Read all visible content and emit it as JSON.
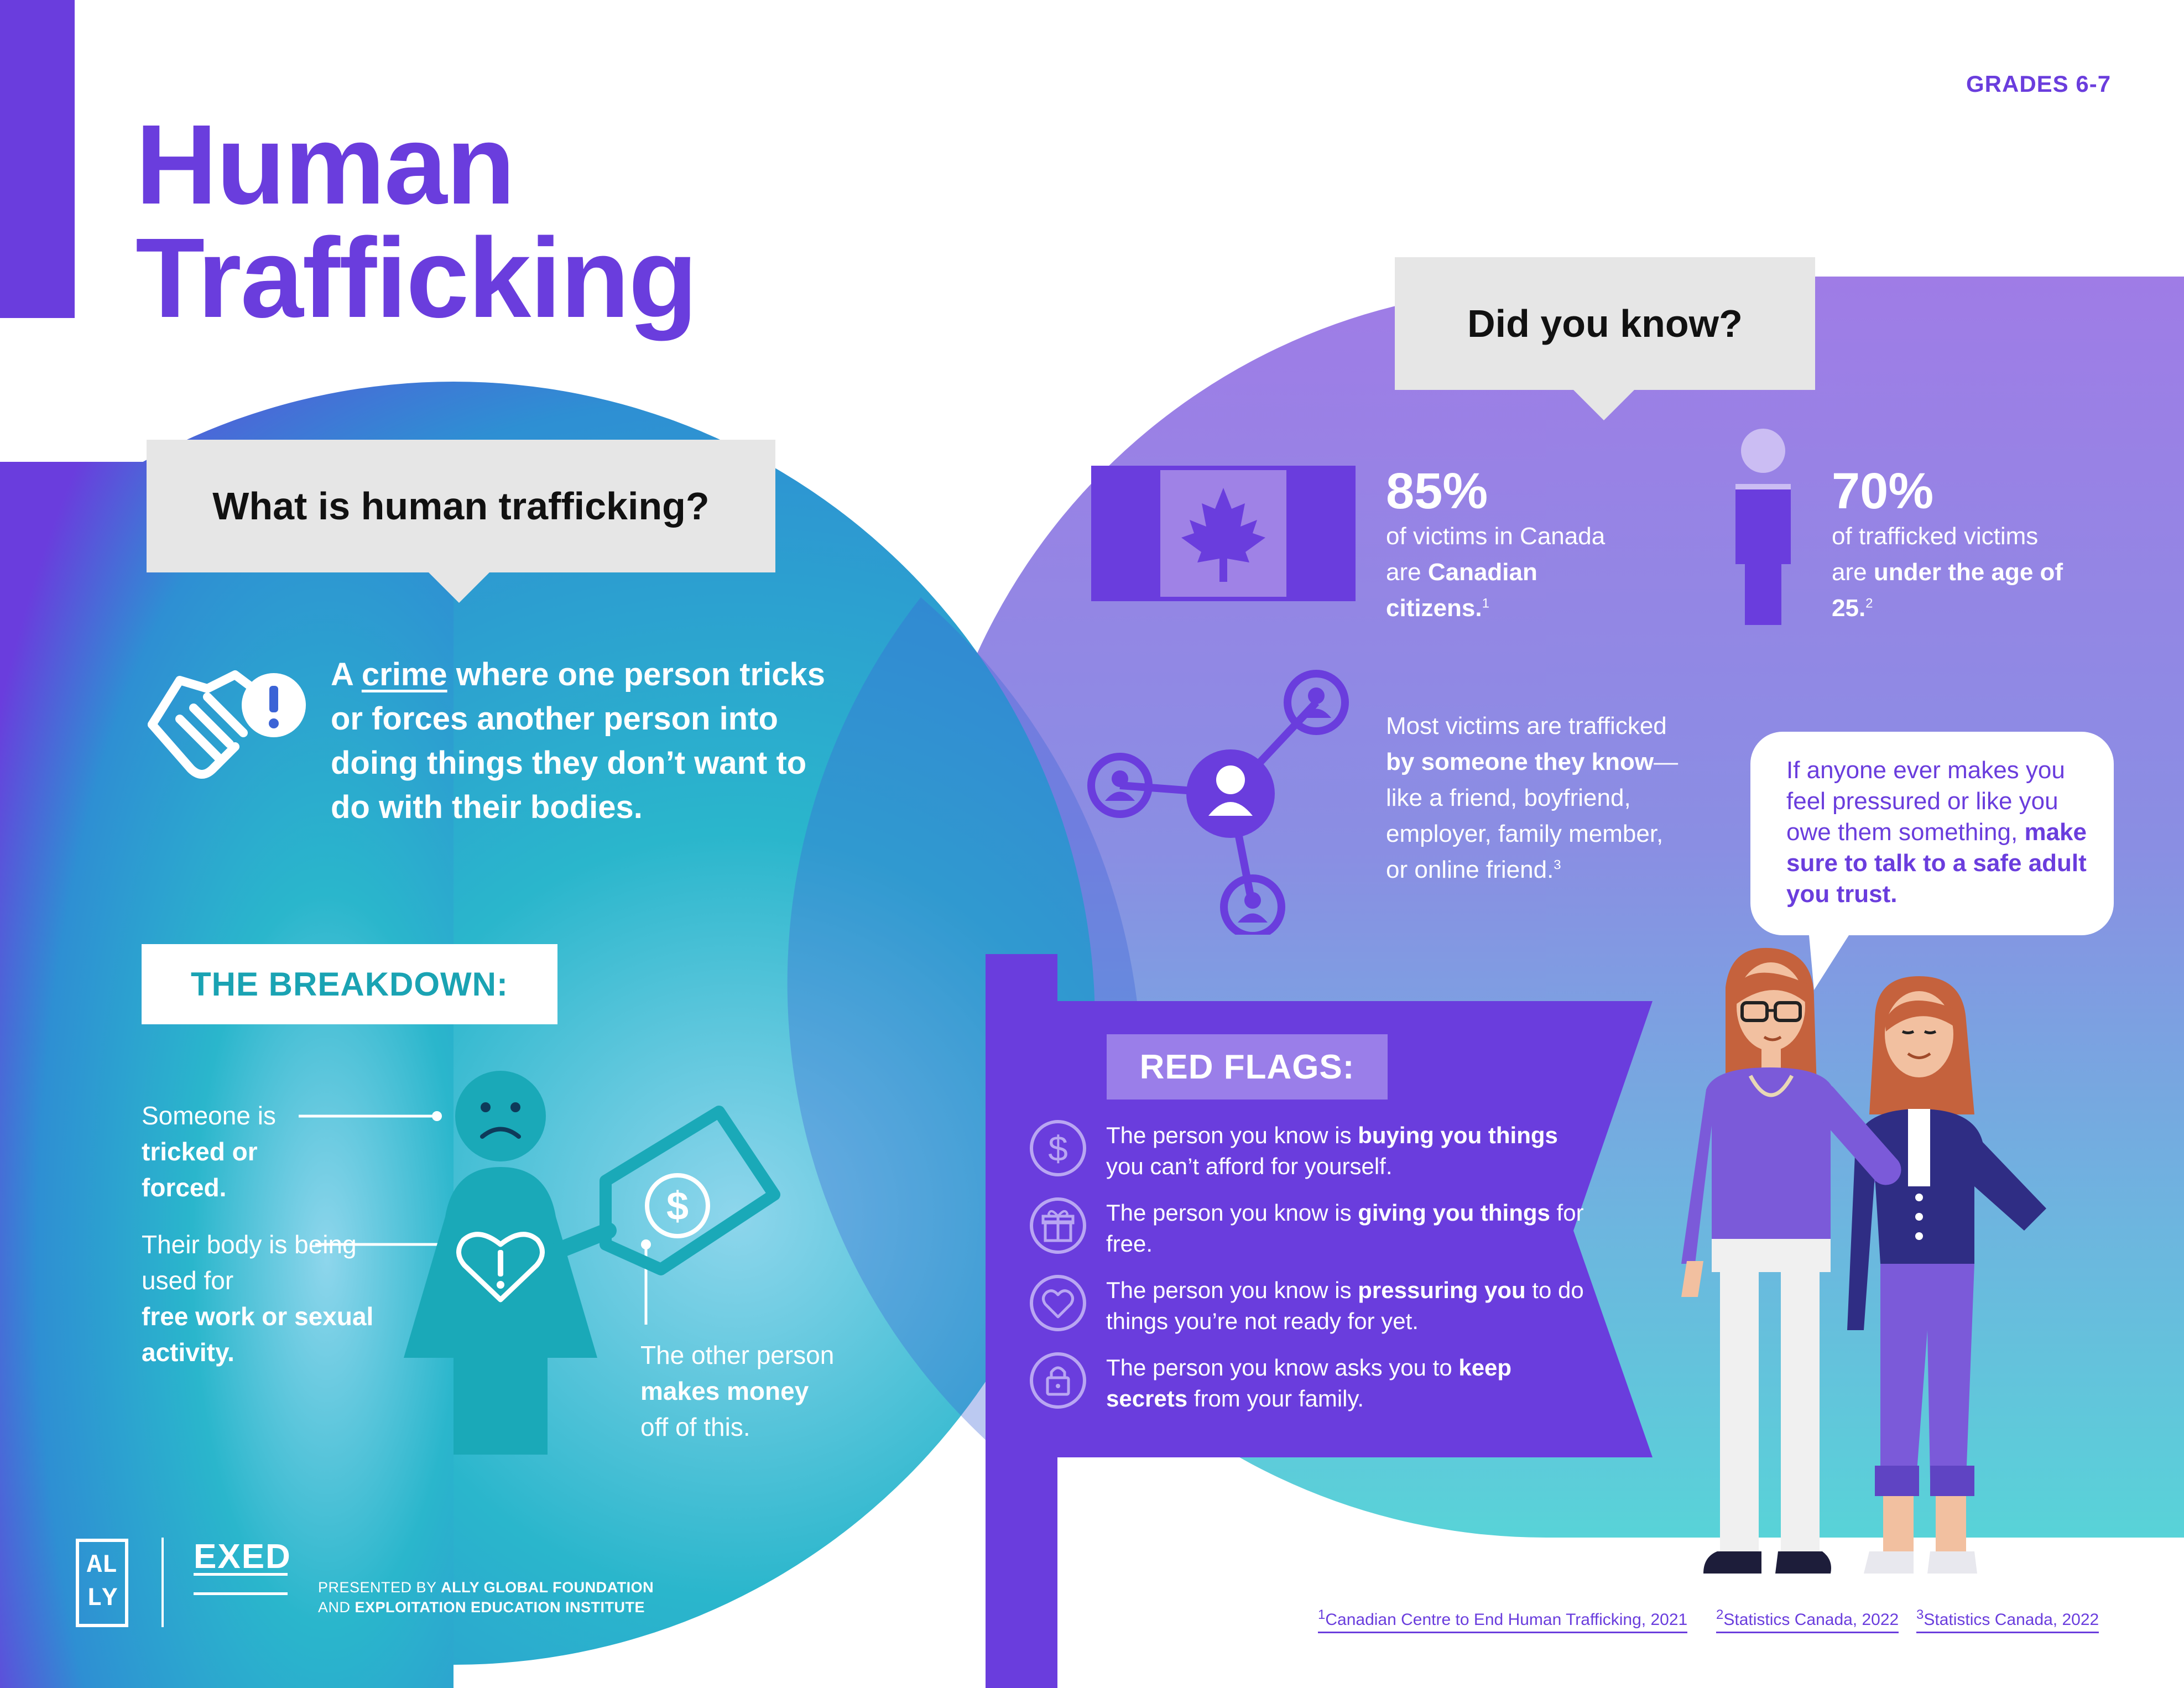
{
  "header": {
    "grades": "GRADES 6-7",
    "title_line1": "Human",
    "title_line2": "Trafficking"
  },
  "what_is": {
    "question": "What is human trafficking?",
    "definition_prefix": "A ",
    "definition_underlined": "crime",
    "definition_rest": " where one person tricks or forces another person into doing things they don’t want to do with their bodies.",
    "icon": "handshake-alert-icon"
  },
  "breakdown": {
    "heading": "THE BREAKDOWN:",
    "label1_plain": "Someone is",
    "label1_bold": "tricked or forced.",
    "label2_plain": "Their body is being used for",
    "label2_bold": "free work or sexual activity.",
    "label3_plain_a": "The other person",
    "label3_bold": "makes money",
    "label3_plain_b": "off of this."
  },
  "did_you_know": {
    "question": "Did you know?",
    "stat1": {
      "value": "85%",
      "text_plain": "of victims in Canada are",
      "text_bold": "Canadian citizens.",
      "sup": "1",
      "icon": "canada-flag-icon"
    },
    "stat2": {
      "value": "70%",
      "text_plain": "of trafficked victims are",
      "text_bold": "under the age of 25.",
      "sup": "2",
      "icon": "person-icon"
    },
    "stat3": {
      "text_a": "Most victims are trafficked",
      "text_bold": "by someone they know",
      "text_b": "—like a friend, boyfriend, employer, family member, or online friend.",
      "sup": "3",
      "icon": "network-people-icon"
    }
  },
  "advice": {
    "plain": "If anyone ever makes you feel pressured or like you owe them something,",
    "bold": "make sure to talk to a safe adult you trust."
  },
  "red_flags": {
    "heading": "RED FLAGS:",
    "items": [
      {
        "a": "The person you know is ",
        "b": "buying you things",
        "c": " you can’t afford for yourself.",
        "icon": "dollar-icon"
      },
      {
        "a": "The person you know is ",
        "b": "giving you things",
        "c": " for free.",
        "icon": "gift-icon"
      },
      {
        "a": "The person you know is ",
        "b": "pressuring you",
        "c": " to do things you’re not ready for yet.",
        "icon": "heart-icon"
      },
      {
        "a": "The person you know asks you to ",
        "b": "keep secrets",
        "c": " from your family.",
        "icon": "lock-icon"
      }
    ]
  },
  "footer": {
    "logo1": "ALLY",
    "logo2": "EXED",
    "presented_prefix": "PRESENTED BY ",
    "presented_bold1": "ALLY GLOBAL FOUNDATION",
    "presented_and": "AND ",
    "presented_bold2": "EXPLOITATION EDUCATION INSTITUTE",
    "sources": [
      {
        "sup": "1",
        "text": "Canadian Centre to End Human Trafficking, 2021"
      },
      {
        "sup": "2",
        "text": "Statistics Canada, 2022"
      },
      {
        "sup": "3",
        "text": "Statistics Canada, 2022"
      }
    ]
  },
  "colors": {
    "purple": "#6a3ddd",
    "teal": "#1aa3b3",
    "light_purple": "#9a7ee9",
    "grey_box": "#e6e6e6"
  }
}
